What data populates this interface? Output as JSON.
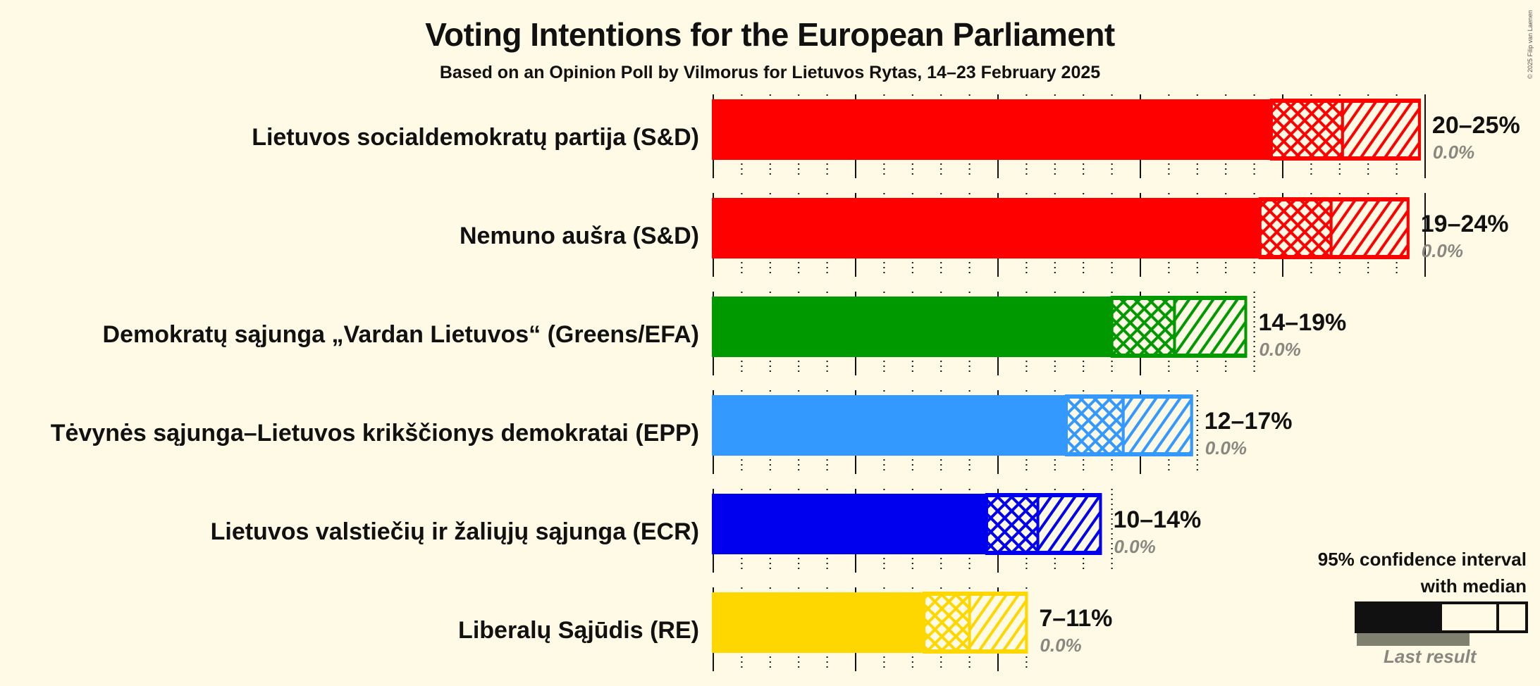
{
  "header": {
    "title": "Voting Intentions for the European Parliament",
    "subtitle": "Based on an Opinion Poll by Vilmorus for Lietuvos Rytas, 14–23 February 2025",
    "copyright": "© 2025 Filip van Laenen"
  },
  "parties": [
    {
      "name": "Lietuvos socialdemokratų partija (S&D)",
      "range": "20–25%",
      "last": "0.0%",
      "color": "#FF0000"
    },
    {
      "name": "Nemuno aušra (S&D)",
      "range": "19–24%",
      "last": "0.0%",
      "color": "#FF0000"
    },
    {
      "name": "Demokratų sąjunga „Vardan Lietuvos“ (Greens/EFA)",
      "range": "14–19%",
      "last": "0.0%",
      "color": "#009900"
    },
    {
      "name": "Tėvynės sąjunga–Lietuvos krikščionys demokratai (EPP)",
      "range": "12–17%",
      "last": "0.0%",
      "color": "#3399FF"
    },
    {
      "name": "Lietuvos valstiečių ir žaliųjų sąjunga (ECR)",
      "range": "10–14%",
      "last": "0.0%",
      "color": "#0000EE"
    },
    {
      "name": "Liberalų Sąjūdis (RE)",
      "range": "7–11%",
      "last": "0.0%",
      "color": "#FFD700"
    }
  ],
  "legend": {
    "title_line1": "95% confidence interval",
    "title_line2": "with median",
    "last_result": "Last result"
  },
  "chart_data": {
    "type": "bar",
    "orientation": "horizontal",
    "title": "Voting Intentions for the European Parliament",
    "subtitle": "Based on an Opinion Poll by Vilmorus for Lietuvos Rytas, 14–23 February 2025",
    "xlabel": "",
    "ylabel": "",
    "xlim": [
      0,
      25
    ],
    "grid": {
      "major_every": 5,
      "minor_every": 1,
      "major_style": "solid",
      "minor_style": "dotted"
    },
    "categories": [
      "Lietuvos socialdemokratų partija (S&D)",
      "Nemuno aušra (S&D)",
      "Demokratų sąjunga „Vardan Lietuvos“ (Greens/EFA)",
      "Tėvynės sąjunga–Lietuvos krikščionys demokratai (EPP)",
      "Lietuvos valstiečių ir žaliųjų sąjunga (ECR)",
      "Liberalų Sąjūdis (RE)"
    ],
    "series": [
      {
        "name": "CI lower (95%)",
        "values": [
          19.6,
          19.2,
          14.0,
          12.4,
          9.6,
          7.4
        ]
      },
      {
        "name": "Median",
        "values": [
          22.1,
          21.7,
          16.2,
          14.4,
          11.4,
          9.0
        ]
      },
      {
        "name": "CI upper (95%)",
        "values": [
          24.8,
          24.4,
          18.7,
          16.8,
          13.6,
          11.0
        ]
      },
      {
        "name": "Last result",
        "values": [
          0.0,
          0.0,
          0.0,
          0.0,
          0.0,
          0.0
        ]
      }
    ],
    "range_labels": [
      "20–25%",
      "19–24%",
      "14–19%",
      "12–17%",
      "10–14%",
      "7–11%"
    ],
    "legend": [
      "95% confidence interval with median",
      "Last result"
    ],
    "legend_position": "bottom-right"
  }
}
